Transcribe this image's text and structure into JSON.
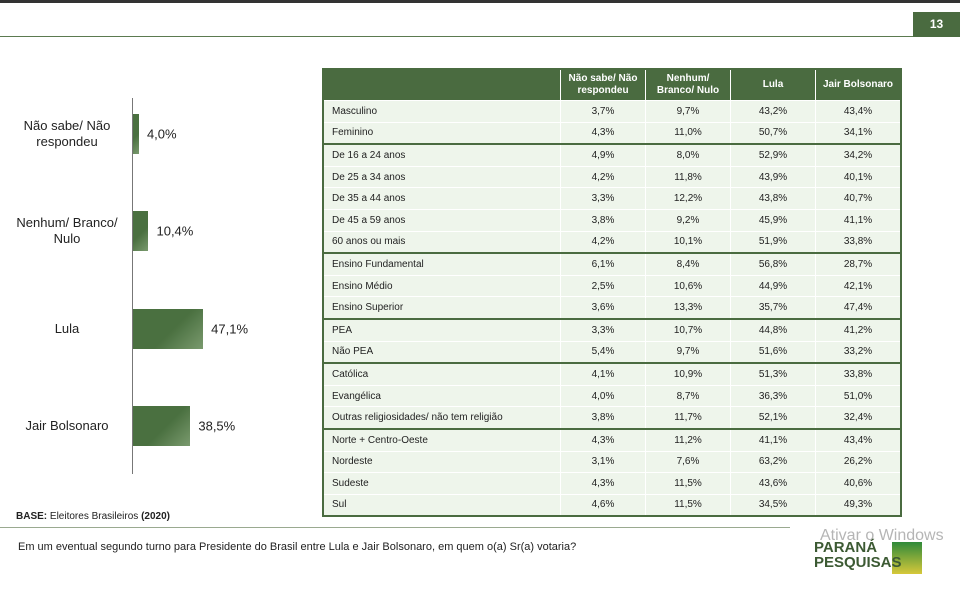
{
  "page_number": "13",
  "chart_data": {
    "type": "bar",
    "orientation": "horizontal",
    "color": "#4a7040",
    "categories": [
      "Não sabe/ Não respondeu",
      "Nenhum/ Branco/ Nulo",
      "Lula",
      "Jair Bolsonaro"
    ],
    "values": [
      4.0,
      10.4,
      47.1,
      38.5
    ],
    "value_labels": [
      "4,0%",
      "10,4%",
      "47,1%",
      "38,5%"
    ]
  },
  "table": {
    "columns": [
      "Não sabe/ Não respondeu",
      "Nenhum/ Branco/ Nulo",
      "Lula",
      "Jair Bolsonaro"
    ],
    "groups": [
      {
        "rows": [
          [
            "Masculino",
            "3,7%",
            "9,7%",
            "43,2%",
            "43,4%"
          ],
          [
            "Feminino",
            "4,3%",
            "11,0%",
            "50,7%",
            "34,1%"
          ]
        ]
      },
      {
        "rows": [
          [
            "De 16 a 24 anos",
            "4,9%",
            "8,0%",
            "52,9%",
            "34,2%"
          ],
          [
            "De 25 a 34 anos",
            "4,2%",
            "11,8%",
            "43,9%",
            "40,1%"
          ],
          [
            "De 35 a 44 anos",
            "3,3%",
            "12,2%",
            "43,8%",
            "40,7%"
          ],
          [
            "De 45 a 59 anos",
            "3,8%",
            "9,2%",
            "45,9%",
            "41,1%"
          ],
          [
            "60 anos ou mais",
            "4,2%",
            "10,1%",
            "51,9%",
            "33,8%"
          ]
        ]
      },
      {
        "rows": [
          [
            "Ensino Fundamental",
            "6,1%",
            "8,4%",
            "56,8%",
            "28,7%"
          ],
          [
            "Ensino Médio",
            "2,5%",
            "10,6%",
            "44,9%",
            "42,1%"
          ],
          [
            "Ensino Superior",
            "3,6%",
            "13,3%",
            "35,7%",
            "47,4%"
          ]
        ]
      },
      {
        "rows": [
          [
            "PEA",
            "3,3%",
            "10,7%",
            "44,8%",
            "41,2%"
          ],
          [
            "Não PEA",
            "5,4%",
            "9,7%",
            "51,6%",
            "33,2%"
          ]
        ]
      },
      {
        "rows": [
          [
            "Católica",
            "4,1%",
            "10,9%",
            "51,3%",
            "33,8%"
          ],
          [
            "Evangélica",
            "4,0%",
            "8,7%",
            "36,3%",
            "51,0%"
          ],
          [
            "Outras religiosidades/ não tem religião",
            "3,8%",
            "11,7%",
            "52,1%",
            "32,4%"
          ]
        ]
      },
      {
        "rows": [
          [
            "Norte + Centro-Oeste",
            "4,3%",
            "11,2%",
            "41,1%",
            "43,4%"
          ],
          [
            "Nordeste",
            "3,1%",
            "7,6%",
            "63,2%",
            "26,2%"
          ],
          [
            "Sudeste",
            "4,3%",
            "11,5%",
            "43,6%",
            "40,6%"
          ],
          [
            "Sul",
            "4,6%",
            "11,5%",
            "34,5%",
            "49,3%"
          ]
        ]
      }
    ]
  },
  "base": {
    "label": "BASE:",
    "text": "Eleitores Brasileiros",
    "year": "(2020)"
  },
  "question": "Em um eventual segundo turno para Presidente do Brasil entre Lula e Jair Bolsonaro, em quem o(a) Sr(a) votaria?",
  "logo": {
    "line1": "PARANÁ",
    "line2": "PESQUISAS"
  },
  "watermark": "Ativar o Windows"
}
